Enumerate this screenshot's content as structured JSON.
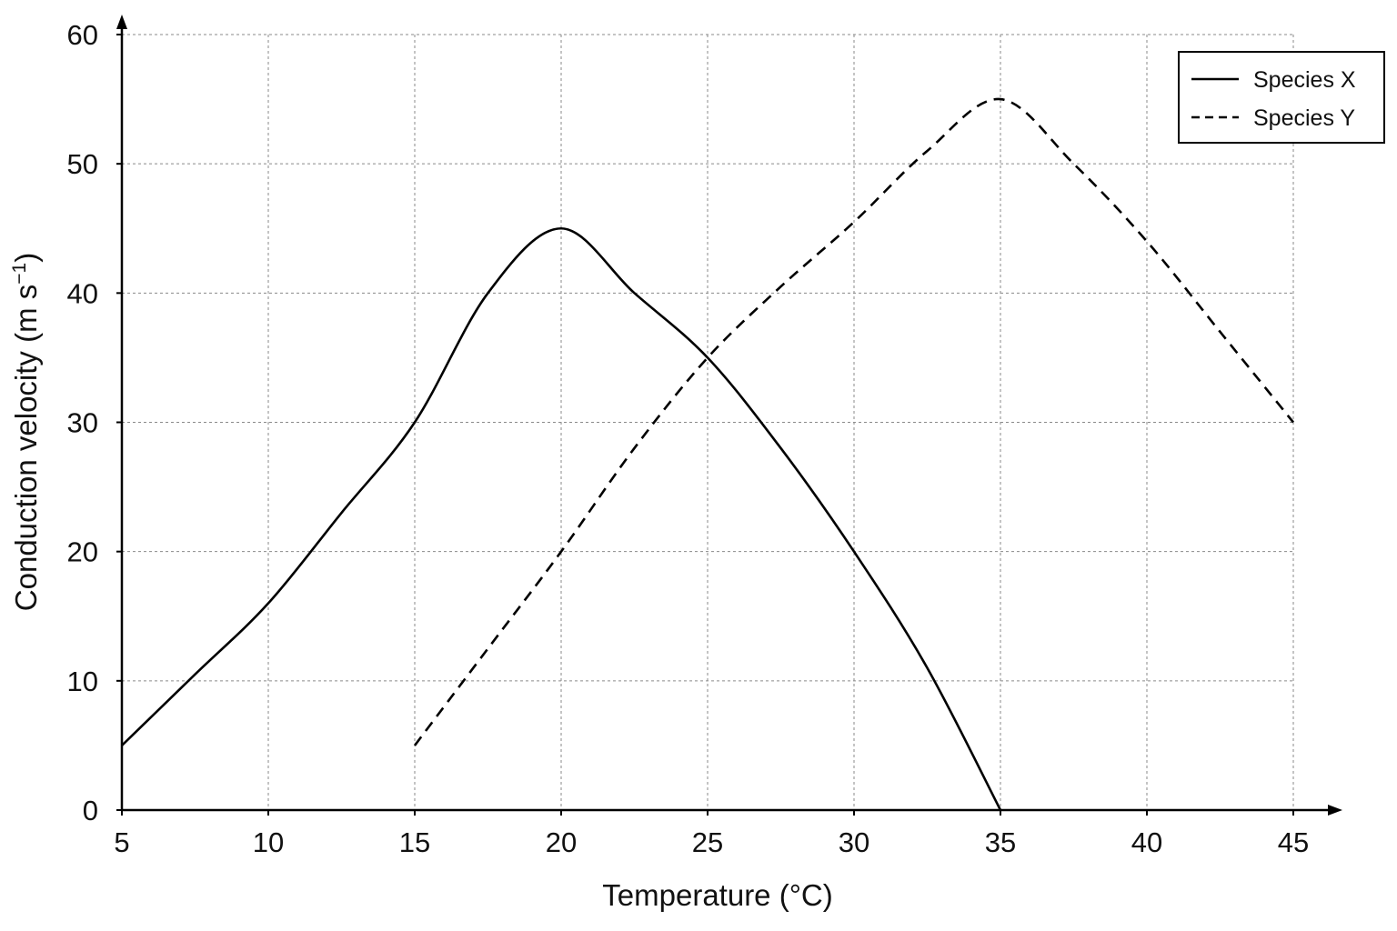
{
  "chart_data": {
    "type": "line",
    "title": "",
    "xlabel": "Temperature (°C)",
    "ylabel_main": "Conduction velocity (m s",
    "ylabel_sup": "−1",
    "ylabel_close": ")",
    "xlim": [
      5,
      45
    ],
    "ylim": [
      0,
      60
    ],
    "xticks": [
      5,
      10,
      15,
      20,
      25,
      30,
      35,
      40,
      45
    ],
    "yticks": [
      0,
      10,
      20,
      30,
      40,
      50,
      60
    ],
    "grid": true,
    "legend_position": "top-right",
    "series": [
      {
        "name": "Species X",
        "style": "solid",
        "color": "#000000",
        "x": [
          5,
          7.5,
          10,
          12.5,
          15,
          17.5,
          20,
          22.5,
          25,
          27.5,
          30,
          32.5,
          35
        ],
        "y": [
          5,
          10.5,
          16,
          23,
          30,
          40,
          45,
          40,
          35,
          28,
          20,
          11,
          0
        ]
      },
      {
        "name": "Species Y",
        "style": "dashed",
        "color": "#000000",
        "x": [
          15,
          17.5,
          20,
          22.5,
          25,
          27.5,
          30,
          32.5,
          35,
          37.5,
          40,
          42.5,
          45
        ],
        "y": [
          5,
          12.5,
          20,
          28,
          35,
          40.5,
          45.5,
          51,
          55,
          50,
          44,
          37,
          30
        ]
      }
    ]
  }
}
